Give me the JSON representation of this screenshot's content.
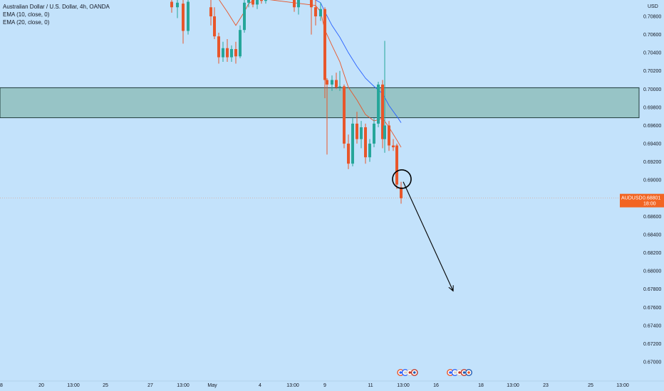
{
  "legend": {
    "symbol_line": "Australian Dollar / U.S. Dollar, 4h, OANDA",
    "ema10": "EMA (10, close, 0)",
    "ema20": "EMA (20, close, 0)"
  },
  "price_axis": {
    "currency": "USD",
    "ticks": [
      "0.70800",
      "0.70600",
      "0.70400",
      "0.70200",
      "0.70000",
      "0.69800",
      "0.69600",
      "0.69400",
      "0.69200",
      "0.69000",
      "0.68600",
      "0.68400",
      "0.68200",
      "0.68000",
      "0.67800",
      "0.67600",
      "0.67400",
      "0.67200",
      "0.67000"
    ]
  },
  "current_price": {
    "symbol": "AUDUSD",
    "price": "0.68801",
    "countdown": "18:00",
    "value": 0.68801,
    "color": "#f26522"
  },
  "time_axis": {
    "labels": [
      {
        "text": "8",
        "t": 2
      },
      {
        "text": "20",
        "t": 58
      },
      {
        "text": "13:00",
        "t": 103
      },
      {
        "text": "25",
        "t": 148
      },
      {
        "text": "27",
        "t": 211
      },
      {
        "text": "13:00",
        "t": 257
      },
      {
        "text": "May",
        "t": 298
      },
      {
        "text": "4",
        "t": 365
      },
      {
        "text": "13:00",
        "t": 411
      },
      {
        "text": "9",
        "t": 456
      },
      {
        "text": "11",
        "t": 520
      },
      {
        "text": "13:00",
        "t": 566
      },
      {
        "text": "16",
        "t": 612
      },
      {
        "text": "18",
        "t": 675
      },
      {
        "text": "13:00",
        "t": 720
      },
      {
        "text": "23",
        "t": 766
      },
      {
        "text": "25",
        "t": 829
      },
      {
        "text": "13:00",
        "t": 874
      }
    ]
  },
  "chart_data": {
    "type": "candlestick",
    "title": "Australian Dollar / U.S. Dollar, 4h, OANDA",
    "ylim": [
      0.6685,
      0.7092
    ],
    "zone": {
      "low": 0.69685,
      "high": 0.70015,
      "color": "#97c4c6"
    },
    "colors": {
      "up": "#26a69a",
      "down": "#e8562a",
      "ema10": "#e8562a",
      "ema20": "#2962ff",
      "background": "#c3e2fb"
    },
    "candles": [
      {
        "t": 241,
        "o": 0.7096,
        "h": 0.71,
        "l": 0.7084,
        "c": 0.709
      },
      {
        "t": 249,
        "o": 0.709,
        "h": 0.71,
        "l": 0.7078,
        "c": 0.7095
      },
      {
        "t": 257,
        "o": 0.7094,
        "h": 0.71,
        "l": 0.705,
        "c": 0.7064
      },
      {
        "t": 264,
        "o": 0.7064,
        "h": 0.71,
        "l": 0.706,
        "c": 0.7096
      },
      {
        "t": 296,
        "o": 0.709,
        "h": 0.71,
        "l": 0.707,
        "c": 0.708
      },
      {
        "t": 301,
        "o": 0.708,
        "h": 0.709,
        "l": 0.7055,
        "c": 0.7058
      },
      {
        "t": 307,
        "o": 0.7058,
        "h": 0.7062,
        "l": 0.7028,
        "c": 0.7035
      },
      {
        "t": 313,
        "o": 0.7035,
        "h": 0.7052,
        "l": 0.703,
        "c": 0.7045
      },
      {
        "t": 319,
        "o": 0.7045,
        "h": 0.7055,
        "l": 0.703,
        "c": 0.7035
      },
      {
        "t": 325,
        "o": 0.7035,
        "h": 0.7048,
        "l": 0.703,
        "c": 0.7044
      },
      {
        "t": 331,
        "o": 0.7044,
        "h": 0.7052,
        "l": 0.7028,
        "c": 0.7036
      },
      {
        "t": 337,
        "o": 0.7036,
        "h": 0.707,
        "l": 0.7034,
        "c": 0.7065
      },
      {
        "t": 343,
        "o": 0.7065,
        "h": 0.71,
        "l": 0.7062,
        "c": 0.7095
      },
      {
        "t": 349,
        "o": 0.7095,
        "h": 0.71,
        "l": 0.709,
        "c": 0.7098
      },
      {
        "t": 355,
        "o": 0.7098,
        "h": 0.71,
        "l": 0.709,
        "c": 0.7093
      },
      {
        "t": 361,
        "o": 0.7093,
        "h": 0.71,
        "l": 0.7088,
        "c": 0.7099
      },
      {
        "t": 367,
        "o": 0.7099,
        "h": 0.71,
        "l": 0.7094,
        "c": 0.7097
      },
      {
        "t": 373,
        "o": 0.7097,
        "h": 0.71,
        "l": 0.7094,
        "c": 0.7099
      },
      {
        "t": 413,
        "o": 0.71,
        "h": 0.71,
        "l": 0.7085,
        "c": 0.709
      },
      {
        "t": 419,
        "o": 0.709,
        "h": 0.71,
        "l": 0.7082,
        "c": 0.7098
      },
      {
        "t": 437,
        "o": 0.7098,
        "h": 0.71,
        "l": 0.706,
        "c": 0.709
      },
      {
        "t": 443,
        "o": 0.709,
        "h": 0.71,
        "l": 0.707,
        "c": 0.708
      },
      {
        "t": 450,
        "o": 0.708,
        "h": 0.7095,
        "l": 0.7075,
        "c": 0.7088
      },
      {
        "t": 456,
        "o": 0.7088,
        "h": 0.709,
        "l": 0.699,
        "c": 0.701
      },
      {
        "t": 459,
        "o": 0.701,
        "h": 0.7012,
        "l": 0.6928,
        "c": 0.7005
      },
      {
        "t": 466,
        "o": 0.7005,
        "h": 0.7015,
        "l": 0.6998,
        "c": 0.701
      },
      {
        "t": 472,
        "o": 0.701,
        "h": 0.7018,
        "l": 0.7,
        "c": 0.7002
      },
      {
        "t": 477,
        "o": 0.7002,
        "h": 0.702,
        "l": 0.6998,
        "c": 0.7003
      },
      {
        "t": 483,
        "o": 0.7003,
        "h": 0.7005,
        "l": 0.6935,
        "c": 0.694
      },
      {
        "t": 489,
        "o": 0.694,
        "h": 0.695,
        "l": 0.6912,
        "c": 0.6918
      },
      {
        "t": 495,
        "o": 0.6918,
        "h": 0.6968,
        "l": 0.6915,
        "c": 0.6962
      },
      {
        "t": 501,
        "o": 0.6962,
        "h": 0.6975,
        "l": 0.694,
        "c": 0.6945
      },
      {
        "t": 507,
        "o": 0.6945,
        "h": 0.6965,
        "l": 0.6935,
        "c": 0.6958
      },
      {
        "t": 513,
        "o": 0.6958,
        "h": 0.6962,
        "l": 0.6918,
        "c": 0.6925
      },
      {
        "t": 519,
        "o": 0.6925,
        "h": 0.6945,
        "l": 0.692,
        "c": 0.694
      },
      {
        "t": 525,
        "o": 0.694,
        "h": 0.6968,
        "l": 0.6936,
        "c": 0.6962
      },
      {
        "t": 531,
        "o": 0.6962,
        "h": 0.7008,
        "l": 0.6958,
        "c": 0.7005
      },
      {
        "t": 537,
        "o": 0.7005,
        "h": 0.701,
        "l": 0.6935,
        "c": 0.6945
      },
      {
        "t": 540,
        "o": 0.6945,
        "h": 0.7053,
        "l": 0.693,
        "c": 0.696
      },
      {
        "t": 546,
        "o": 0.696,
        "h": 0.6965,
        "l": 0.6932,
        "c": 0.6938
      },
      {
        "t": 552,
        "o": 0.6938,
        "h": 0.6945,
        "l": 0.6932,
        "c": 0.6936
      },
      {
        "t": 557,
        "o": 0.6938,
        "h": 0.694,
        "l": 0.689,
        "c": 0.6895
      },
      {
        "t": 563,
        "o": 0.6892,
        "h": 0.6898,
        "l": 0.6874,
        "c": 0.688
      }
    ],
    "ema10": [
      [
        306,
        0.71
      ],
      [
        319,
        0.7085
      ],
      [
        331,
        0.707
      ],
      [
        343,
        0.7085
      ],
      [
        349,
        0.7094
      ],
      [
        361,
        0.71
      ],
      [
        443,
        0.7092
      ],
      [
        450,
        0.7085
      ],
      [
        456,
        0.7065
      ],
      [
        466,
        0.7048
      ],
      [
        477,
        0.703
      ],
      [
        489,
        0.7002
      ],
      [
        501,
        0.6988
      ],
      [
        513,
        0.6972
      ],
      [
        525,
        0.6965
      ],
      [
        537,
        0.6968
      ],
      [
        546,
        0.6958
      ],
      [
        557,
        0.6944
      ],
      [
        563,
        0.6936
      ]
    ],
    "ema20": [
      [
        437,
        0.71
      ],
      [
        443,
        0.7098
      ],
      [
        450,
        0.7095
      ],
      [
        456,
        0.7085
      ],
      [
        466,
        0.707
      ],
      [
        477,
        0.7057
      ],
      [
        489,
        0.704
      ],
      [
        501,
        0.7025
      ],
      [
        513,
        0.7012
      ],
      [
        525,
        0.7003
      ],
      [
        537,
        0.6995
      ],
      [
        546,
        0.6982
      ],
      [
        557,
        0.697
      ],
      [
        563,
        0.6963
      ]
    ]
  },
  "drawings": {
    "circle": {
      "t": 564,
      "price": 0.6901,
      "color": "#000000"
    },
    "arrow": {
      "from": [
        566,
        0.6898
      ],
      "to": [
        636,
        0.6778
      ],
      "color": "#000000"
    }
  },
  "event_markers": {
    "groups": [
      {
        "t": 572,
        "count": 4
      },
      {
        "t": 645,
        "count": 5
      }
    ]
  }
}
